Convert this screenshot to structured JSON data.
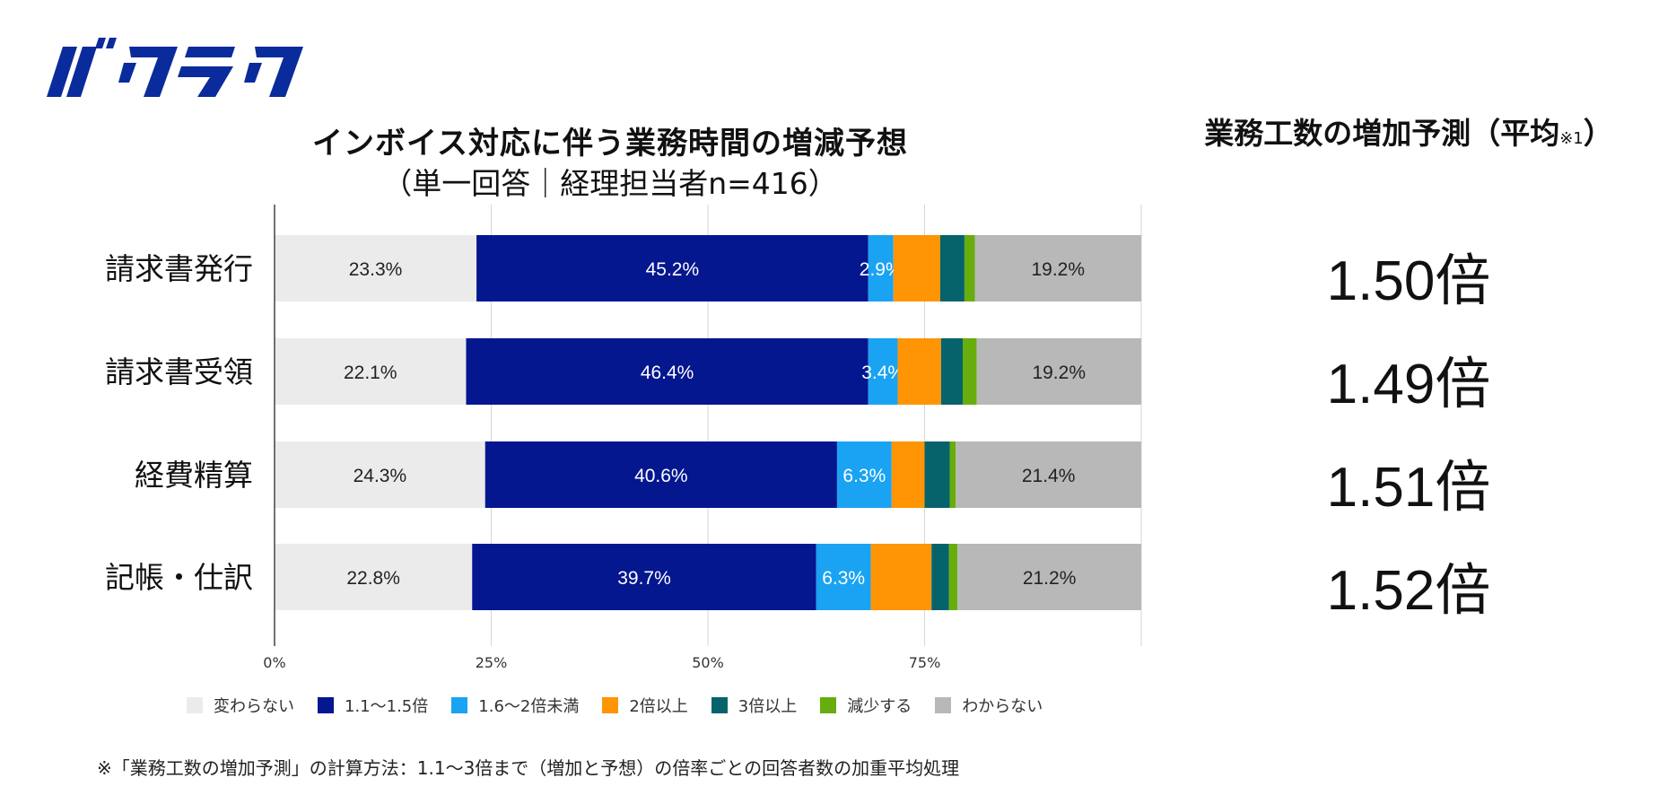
{
  "logo": {
    "text": "バクラク",
    "color": "#0a2b9c"
  },
  "title": "インボイス対応に伴う業務時間の増減予想",
  "subtitle": "（単一回答｜経理担当者n=416）",
  "right_panel": {
    "title": "業務工数の増加予測（平均",
    "title_note": "※1",
    "title_close": "）",
    "values": [
      "1.50倍",
      "1.49倍",
      "1.51倍",
      "1.52倍"
    ]
  },
  "footnote": "※「業務工数の増加予測」の計算方法：1.1～3倍まで（増加と予想）の倍率ごとの回答者数の加重平均処理",
  "colors": {
    "変わらない": "#ebebeb",
    "1.1〜1.5倍": "#04178f",
    "1.6〜2倍未満": "#1aa3f2",
    "2倍以上": "#ff9405",
    "3倍以上": "#06636c",
    "減少する": "#68ad0e",
    "わからない": "#b8b8b8"
  },
  "chart_data": {
    "type": "bar",
    "orientation": "horizontal",
    "stacked": true,
    "categories": [
      "請求書発行",
      "請求書受領",
      "経費精算",
      "記帳・仕訳"
    ],
    "series": [
      {
        "name": "変わらない",
        "values": [
          23.3,
          22.1,
          24.3,
          22.8
        ],
        "labels": [
          "23.3%",
          "22.1%",
          "24.3%",
          "22.8%"
        ]
      },
      {
        "name": "1.1〜1.5倍",
        "values": [
          45.2,
          46.4,
          40.6,
          39.7
        ],
        "labels": [
          "45.2%",
          "46.4%",
          "40.6%",
          "39.7%"
        ]
      },
      {
        "name": "1.6〜2倍未満",
        "values": [
          2.9,
          3.4,
          6.3,
          6.3
        ],
        "labels": [
          "2.9%",
          "3.4%",
          "6.3%",
          "6.3%"
        ]
      },
      {
        "name": "2倍以上",
        "values": [
          5.4,
          5.0,
          3.8,
          7.0
        ],
        "labels": [
          "",
          "",
          "",
          ""
        ]
      },
      {
        "name": "3倍以上",
        "values": [
          2.8,
          2.5,
          2.9,
          2.0
        ],
        "labels": [
          "",
          "",
          "",
          ""
        ]
      },
      {
        "name": "減少する",
        "values": [
          1.2,
          1.6,
          0.7,
          1.0
        ],
        "labels": [
          "",
          "",
          "",
          ""
        ]
      },
      {
        "name": "わからない",
        "values": [
          19.2,
          19.2,
          21.4,
          21.2
        ],
        "labels": [
          "19.2%",
          "19.2%",
          "21.4%",
          "21.2%"
        ]
      }
    ],
    "xlim": [
      0,
      100
    ],
    "xticks": [
      "0%",
      "25%",
      "50%",
      "75%"
    ],
    "xtick_values": [
      0,
      25,
      50,
      75
    ],
    "grid": true,
    "legend_position": "bottom"
  }
}
